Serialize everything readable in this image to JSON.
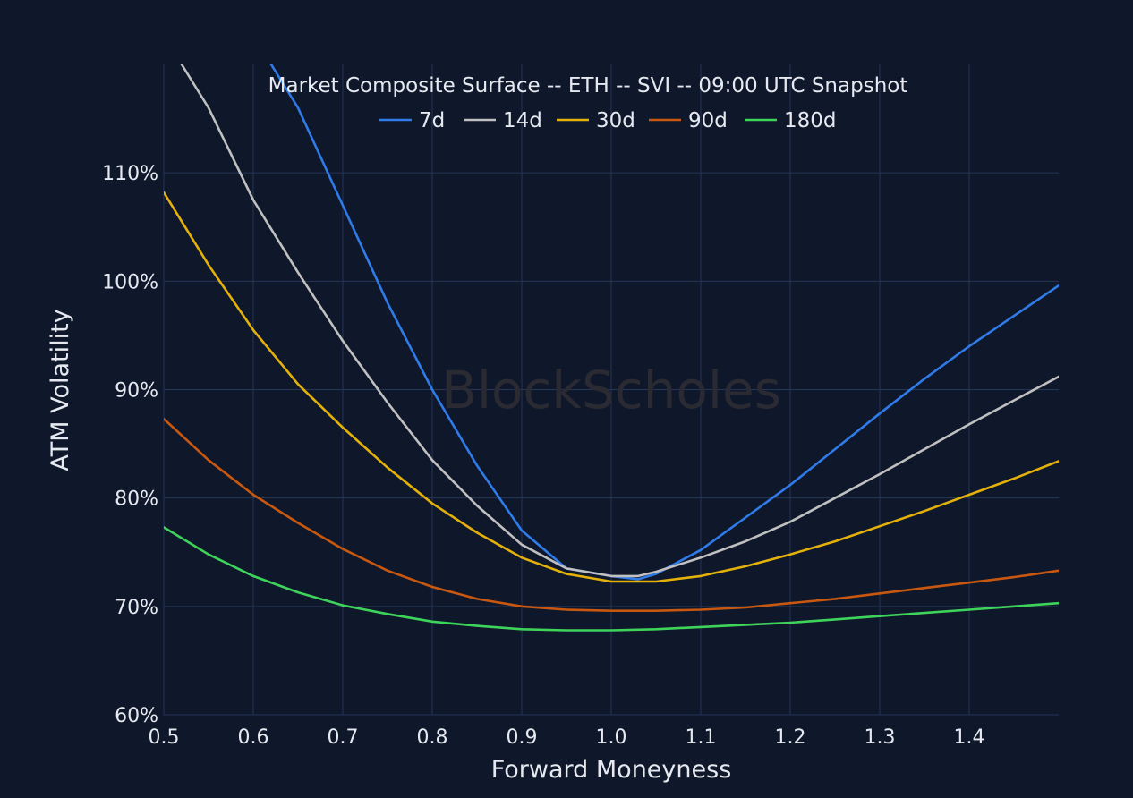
{
  "colors": {
    "background": "#0f172b",
    "grid": "#253657",
    "text": "#e6e9ef",
    "watermark": "#2a2a33"
  },
  "watermark": "BlockScholes",
  "chart_data": {
    "type": "line",
    "title": "Market Composite Surface -- ETH -- SVI -- 09:00 UTC Snapshot",
    "xlabel": "Forward Moneyness",
    "ylabel": "ATM Volatility",
    "xlim": [
      0.5,
      1.5
    ],
    "ylim": [
      60,
      120
    ],
    "xticks": [
      0.5,
      0.6,
      0.7,
      0.8,
      0.9,
      1.0,
      1.1,
      1.2,
      1.3,
      1.4
    ],
    "xtick_labels": [
      "0.5",
      "0.6",
      "0.7",
      "0.8",
      "0.9",
      "1.0",
      "1.1",
      "1.2",
      "1.3",
      "1.4"
    ],
    "yticks": [
      60,
      70,
      80,
      90,
      100,
      110
    ],
    "ytick_labels": [
      "60%",
      "70%",
      "80%",
      "90%",
      "100%",
      "110%"
    ],
    "grid": true,
    "legend_position": "top-center",
    "series": [
      {
        "name": "7d",
        "color": "#2f7be8",
        "x": [
          0.62,
          0.65,
          0.7,
          0.75,
          0.8,
          0.85,
          0.9,
          0.95,
          1.0,
          1.03,
          1.05,
          1.1,
          1.15,
          1.2,
          1.25,
          1.3,
          1.35,
          1.4,
          1.45,
          1.5
        ],
        "y": [
          120,
          116,
          107,
          98,
          90,
          83,
          77,
          73.5,
          72.8,
          72.5,
          73,
          75.2,
          78.2,
          81.2,
          84.5,
          87.8,
          91,
          94,
          96.8,
          99.6
        ]
      },
      {
        "name": "14d",
        "color": "#c0c0c0",
        "x": [
          0.52,
          0.55,
          0.6,
          0.65,
          0.7,
          0.75,
          0.8,
          0.85,
          0.9,
          0.95,
          1.0,
          1.03,
          1.05,
          1.1,
          1.15,
          1.2,
          1.25,
          1.3,
          1.35,
          1.4,
          1.45,
          1.5
        ],
        "y": [
          120,
          116,
          107.5,
          100.8,
          94.5,
          88.8,
          83.5,
          79.3,
          75.7,
          73.5,
          72.8,
          72.8,
          73.2,
          74.5,
          76,
          77.8,
          80,
          82.2,
          84.5,
          86.8,
          89,
          91.2
        ]
      },
      {
        "name": "30d",
        "color": "#e3b10a",
        "x": [
          0.5,
          0.55,
          0.6,
          0.65,
          0.7,
          0.75,
          0.8,
          0.85,
          0.9,
          0.95,
          1.0,
          1.05,
          1.1,
          1.15,
          1.2,
          1.25,
          1.3,
          1.35,
          1.4,
          1.45,
          1.5
        ],
        "y": [
          108.2,
          101.5,
          95.5,
          90.5,
          86.5,
          82.8,
          79.5,
          76.8,
          74.5,
          73,
          72.3,
          72.3,
          72.8,
          73.7,
          74.8,
          76,
          77.4,
          78.8,
          80.3,
          81.8,
          83.4
        ]
      },
      {
        "name": "90d",
        "color": "#c8580f",
        "x": [
          0.5,
          0.55,
          0.6,
          0.65,
          0.7,
          0.75,
          0.8,
          0.85,
          0.9,
          0.95,
          1.0,
          1.05,
          1.1,
          1.15,
          1.2,
          1.25,
          1.3,
          1.35,
          1.4,
          1.45,
          1.5
        ],
        "y": [
          87.3,
          83.5,
          80.3,
          77.7,
          75.3,
          73.3,
          71.8,
          70.7,
          70,
          69.7,
          69.6,
          69.6,
          69.7,
          69.9,
          70.3,
          70.7,
          71.2,
          71.7,
          72.2,
          72.7,
          73.3
        ]
      },
      {
        "name": "180d",
        "color": "#3ed45a",
        "x": [
          0.5,
          0.55,
          0.6,
          0.65,
          0.7,
          0.75,
          0.8,
          0.85,
          0.9,
          0.95,
          1.0,
          1.05,
          1.1,
          1.15,
          1.2,
          1.25,
          1.3,
          1.35,
          1.4,
          1.45,
          1.5
        ],
        "y": [
          77.3,
          74.8,
          72.8,
          71.3,
          70.1,
          69.3,
          68.6,
          68.2,
          67.9,
          67.8,
          67.8,
          67.9,
          68.1,
          68.3,
          68.5,
          68.8,
          69.1,
          69.4,
          69.7,
          70,
          70.3
        ]
      }
    ]
  }
}
